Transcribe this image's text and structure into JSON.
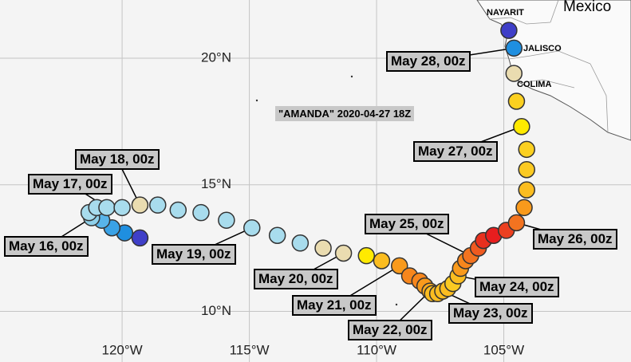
{
  "title": "\"AMANDA\" 2020-04-27 18Z",
  "places": [
    "Mexico",
    "NAYARIT",
    "JALISCO",
    "COLIMA"
  ],
  "map": {
    "xlim": [
      -124.8,
      -100.0
    ],
    "ylim": [
      8.0,
      22.3
    ],
    "xticks": [
      {
        "value": -120,
        "label": "120°W"
      },
      {
        "value": -115,
        "label": "115°W"
      },
      {
        "value": -110,
        "label": "110°W"
      },
      {
        "value": -105,
        "label": "105°W"
      }
    ],
    "yticks": [
      {
        "value": 10,
        "label": "10°N"
      },
      {
        "value": 15,
        "label": "15°N"
      },
      {
        "value": 20,
        "label": "20°N"
      }
    ],
    "grid": true
  },
  "track": {
    "lon": [
      -119.3,
      -119.9,
      -120.4,
      -120.8,
      -121.2,
      -121.3,
      -121.0,
      -120.6,
      -120.0,
      -119.3,
      -118.6,
      -117.8,
      -116.9,
      -115.9,
      -114.9,
      -113.9,
      -113.0,
      -112.1,
      -111.3,
      -110.4,
      -109.8,
      -109.1,
      -108.7,
      -108.3,
      -108.1,
      -107.9,
      -107.8,
      -107.6,
      -107.4,
      -107.2,
      -107.0,
      -106.8,
      -106.7,
      -106.5,
      -106.3,
      -106.0,
      -105.8,
      -105.4,
      -104.9,
      -104.5,
      -104.2,
      -104.1,
      -104.1,
      -104.1,
      -104.3,
      -104.5,
      -104.6,
      -104.6,
      -104.8
    ],
    "lat": [
      12.9,
      13.1,
      13.3,
      13.6,
      13.7,
      13.9,
      14.1,
      14.1,
      14.1,
      14.2,
      14.2,
      14.0,
      13.9,
      13.6,
      13.3,
      13.0,
      12.7,
      12.5,
      12.3,
      12.2,
      12.0,
      11.8,
      11.4,
      11.2,
      11.0,
      10.8,
      10.7,
      10.7,
      10.8,
      10.9,
      11.1,
      11.4,
      11.7,
      12.0,
      12.2,
      12.5,
      12.8,
      13.0,
      13.2,
      13.5,
      14.1,
      14.8,
      15.6,
      16.4,
      17.3,
      18.3,
      19.4,
      20.4,
      21.1
    ],
    "colors": [
      "#3f3fc8",
      "#1f8fe0",
      "#3aa2e6",
      "#58b4ea",
      "#8fd0ea",
      "#a8dced",
      "#a8dced",
      "#a8dced",
      "#a8dced",
      "#eadcb0",
      "#a8dced",
      "#a8dced",
      "#a8dced",
      "#a8dced",
      "#a8dced",
      "#a8dced",
      "#a8dced",
      "#eadcb0",
      "#eadcb0",
      "#ffea00",
      "#fbbd20",
      "#f99a1c",
      "#f7861c",
      "#f7861c",
      "#f99a1c",
      "#fbaa1e",
      "#fbbd20",
      "#fbbd20",
      "#fbbd20",
      "#fbbd20",
      "#fbca22",
      "#fbbd20",
      "#f99a1c",
      "#f7861c",
      "#f37320",
      "#ef5a20",
      "#e8301e",
      "#e81e1e",
      "#ec4020",
      "#f37320",
      "#f99a1c",
      "#fbbd20",
      "#fbca22",
      "#fbd020",
      "#ffea00",
      "#fbd020",
      "#eadcb0",
      "#1f8fe0",
      "#3f3fc8"
    ]
  },
  "date_labels": [
    "May 16, 00z",
    "May 17, 00z",
    "May 18, 00z",
    "May 19, 00z",
    "May 20, 00z",
    "May 21, 00z",
    "May 22, 00z",
    "May 23, 00z",
    "May 24, 00z",
    "May 25, 00z",
    "May 26, 00z",
    "May 27, 00z",
    "May 28, 00z"
  ]
}
